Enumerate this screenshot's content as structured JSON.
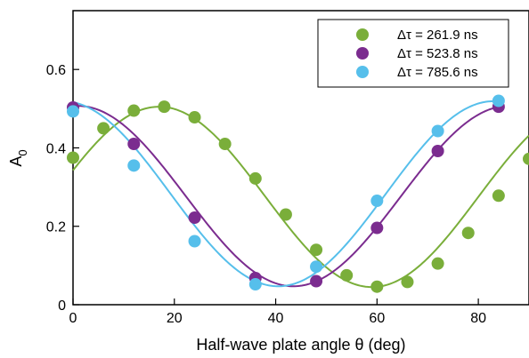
{
  "chart_data": {
    "type": "scatter",
    "xlabel": "Half-wave plate angle θ (deg)",
    "ylabel": "A0",
    "xlim": [
      0,
      90
    ],
    "ylim": [
      0,
      0.75
    ],
    "x_ticks": [
      0,
      20,
      40,
      60,
      80
    ],
    "y_ticks": [
      0,
      0.2,
      0.4,
      0.6
    ],
    "x_tick_labels": [
      "0",
      "20",
      "40",
      "60",
      "80"
    ],
    "y_tick_labels": [
      "0",
      "0.2",
      "0.4",
      "0.6"
    ],
    "grid": false,
    "legend_position": "top-right",
    "series": [
      {
        "name": "Δτ = 261.9 ns",
        "color": "#7aae3a",
        "x": [
          0,
          6,
          12,
          18,
          24,
          30,
          36,
          42,
          48,
          54,
          60,
          66,
          72,
          78,
          84,
          90
        ],
        "y": [
          0.375,
          0.45,
          0.495,
          0.505,
          0.478,
          0.41,
          0.322,
          0.23,
          0.14,
          0.075,
          0.046,
          0.058,
          0.105,
          0.183,
          0.278,
          0.372
        ],
        "fit": {
          "amplitude": 0.23,
          "offset": 0.275,
          "period": 84,
          "peak_x": 17
        }
      },
      {
        "name": "Δτ = 523.8 ns",
        "color": "#7b2c8f",
        "x": [
          0,
          12,
          24,
          36,
          48,
          60,
          72,
          84
        ],
        "y": [
          0.503,
          0.41,
          0.222,
          0.068,
          0.06,
          0.196,
          0.392,
          0.505
        ],
        "fit": {
          "amplitude": 0.23,
          "offset": 0.277,
          "period": 85,
          "peak_x": 86
        }
      },
      {
        "name": "Δτ = 785.6 ns",
        "color": "#56bfeb",
        "x": [
          0,
          12,
          24,
          36,
          48,
          60,
          72,
          84
        ],
        "y": [
          0.493,
          0.355,
          0.162,
          0.052,
          0.097,
          0.265,
          0.443,
          0.52
        ],
        "fit": {
          "amplitude": 0.236,
          "offset": 0.283,
          "period": 85,
          "peak_x": 83
        }
      }
    ]
  }
}
